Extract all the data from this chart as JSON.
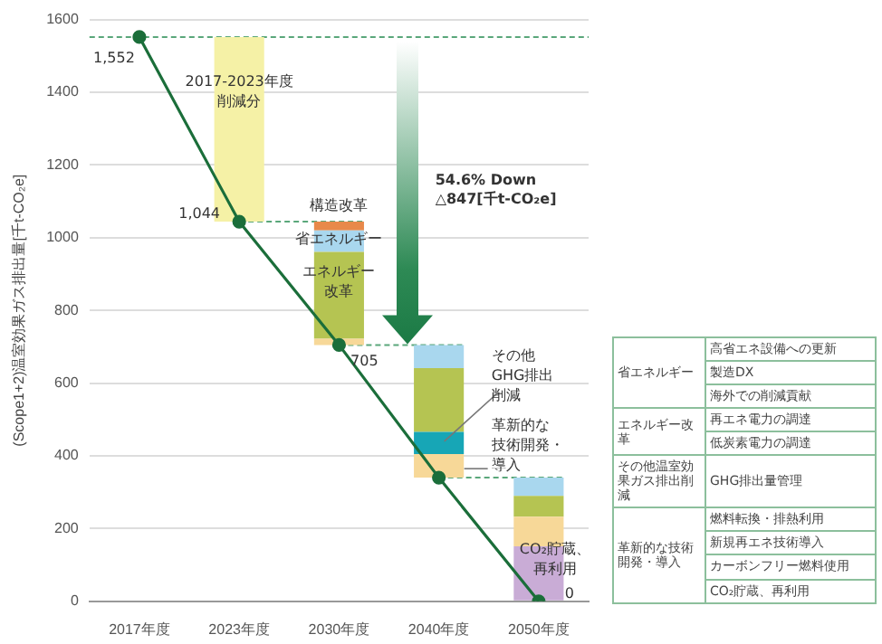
{
  "chart_data": [
    {
      "type": "bar",
      "ylabel": "(Scope1+2)温室効果ガス排出量[千t-CO₂e]",
      "categories": [
        "2017年度",
        "2023年度",
        "2030年度",
        "2040年度",
        "2050年度"
      ],
      "series": [
        {
          "color": "#c9acd6",
          "base": [
            null,
            null,
            null,
            null,
            0
          ],
          "values": [
            null,
            null,
            null,
            null,
            151
          ]
        },
        {
          "color": "#f7d898",
          "base": [
            null,
            null,
            705,
            340,
            151
          ],
          "values": [
            null,
            null,
            17,
            65,
            82
          ]
        },
        {
          "color": "#17a6b6",
          "base": [
            null,
            null,
            null,
            405,
            null
          ],
          "values": [
            null,
            null,
            null,
            61,
            null
          ]
        },
        {
          "color": "#b5c452",
          "base": [
            null,
            null,
            722,
            466,
            233
          ],
          "values": [
            null,
            null,
            239,
            175,
            57
          ]
        },
        {
          "color": "#a9d7ee",
          "base": [
            null,
            null,
            961,
            641,
            290
          ],
          "values": [
            null,
            null,
            59,
            64,
            50
          ]
        },
        {
          "color": "#e8894a",
          "base": [
            null,
            null,
            1020,
            null,
            null
          ],
          "values": [
            null,
            null,
            24,
            null,
            null
          ]
        },
        {
          "color": "#f5f1a6",
          "base": [
            null,
            1044,
            null,
            null,
            null
          ],
          "values": [
            null,
            508,
            null,
            null,
            null
          ]
        },
        {
          "type": "line",
          "color": "#1b6e3a",
          "values": [
            1552,
            1044,
            705,
            340,
            0
          ],
          "value_labels": [
            "1,552",
            "1,044",
            "705",
            null,
            "0"
          ]
        }
      ],
      "ylim": [
        0,
        1600
      ],
      "yticks": [
        0,
        200,
        400,
        600,
        800,
        1000,
        1200,
        1400,
        1600
      ],
      "grid": "y",
      "legend": false,
      "marker": "circle",
      "line_style": "solid",
      "ref_lines": [
        {
          "axis": "y",
          "value": 1552,
          "color": "#5aa77a",
          "line_style": "dashed"
        },
        {
          "axis": "y",
          "value": 1044,
          "color": "#5aa77a",
          "line_style": "dashed"
        },
        {
          "axis": "y",
          "value": 705,
          "color": "#5aa77a",
          "line_style": "dashed"
        },
        {
          "axis": "y",
          "value": 340,
          "color": "#5aa77a",
          "line_style": "dashed"
        }
      ],
      "annotations": [
        "2017-2023年度削減分",
        "構造改革",
        "省エネルギー",
        "エネルギー改革",
        "54.6% Down",
        "△847[千t-CO₂e]",
        "その他GHG排出削減",
        "革新的な技術開発・導入",
        "CO₂貯蔵、再利用"
      ]
    },
    {
      "type": "other",
      "cell_labels": [
        [
          "省エネルギー",
          "高省エネ設備への更新"
        ],
        [
          null,
          "製造DX"
        ],
        [
          null,
          "海外での削減貢献"
        ],
        [
          "エネルギー改革",
          "再エネ電力の調達"
        ],
        [
          null,
          "低炭素電力の調達"
        ],
        [
          "その他温室効果ガス排出削減",
          "GHG排出量管理"
        ],
        [
          "革新的な技術開発・導入",
          "燃料転換・排熱利用"
        ],
        [
          null,
          "新規再エネ技術導入"
        ],
        [
          null,
          "カーボンフリー燃料使用"
        ],
        [
          null,
          "CO₂貯蔵、再利用"
        ]
      ]
    }
  ]
}
